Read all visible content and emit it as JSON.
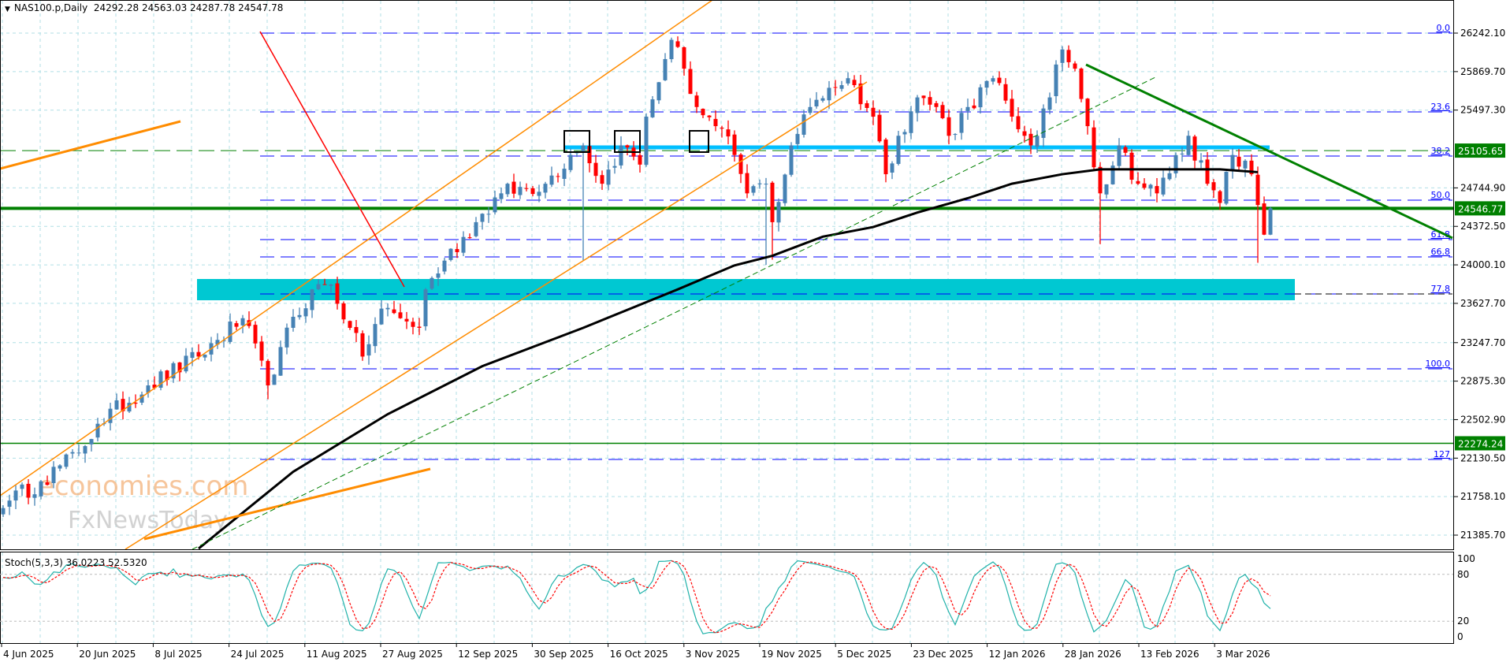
{
  "header": {
    "symbol": "NAS100.p,Daily",
    "ohlc": "24292.28 24563.03 24287.78 24547.78"
  },
  "colors": {
    "bull": "#4682b4",
    "bear": "#ff0000",
    "fib": "#0000ff",
    "support_green": "#008000",
    "zone": "#00c8d2",
    "cyan_line": "#00bfff",
    "channel": "#ff8c00",
    "ma": "#000000",
    "stoch_k": "#20b2aa",
    "stoch_d": "#ff0000"
  },
  "price_axis": {
    "ticks": [
      "26242.10",
      "25869.70",
      "25497.30",
      "24744.90",
      "24372.50",
      "24000.10",
      "23627.70",
      "23247.70",
      "22875.30",
      "22502.90",
      "22130.50",
      "21758.10",
      "21385.70"
    ],
    "range": [
      21385.7,
      26242.1
    ],
    "marked_levels": [
      {
        "label": "25105.65",
        "price": 25105.65,
        "style": "dashed"
      },
      {
        "label": "24546.77",
        "price": 24546.77,
        "style": "thick"
      },
      {
        "label": "22274.24",
        "price": 22274.24,
        "style": "solid"
      }
    ]
  },
  "fibonacci": [
    {
      "label": "0.0",
      "price": 26242
    },
    {
      "label": "23.6",
      "price": 25480
    },
    {
      "label": "38.2",
      "price": 25053
    },
    {
      "label": "50.0",
      "price": 24626
    },
    {
      "label": "61.8",
      "price": 24245
    },
    {
      "label": "66.8",
      "price": 24077
    },
    {
      "label": "77.8",
      "price": 23719
    },
    {
      "label": "100.0",
      "price": 22994
    },
    {
      "label": "127",
      "price": 22118
    }
  ],
  "time_axis": [
    "4 Jun 2025",
    "20 Jun 2025",
    "8 Jul 2025",
    "24 Jul 2025",
    "11 Aug 2025",
    "27 Aug 2025",
    "12 Sep 2025",
    "30 Sep 2025",
    "16 Oct 2025",
    "3 Nov 2025",
    "19 Nov 2025",
    "5 Dec 2025",
    "23 Dec 2025",
    "12 Jan 2026",
    "28 Jan 2026",
    "13 Feb 2026",
    "3 Mar 2026"
  ],
  "stoch": {
    "label": "Stoch(5,3,3) 36.0223 52.5320",
    "levels": [
      "100",
      "80",
      "20",
      "0"
    ]
  },
  "watermark": {
    "brand1": "economies.com",
    "brand2": "FxNewsToday"
  },
  "chart_data": {
    "type": "candlestick",
    "symbol": "NAS100.p",
    "timeframe": "Daily",
    "last": {
      "open": 24292.28,
      "high": 24563.03,
      "low": 24287.78,
      "close": 24547.78
    },
    "close_anchors": [
      [
        1,
        21720
      ],
      [
        6,
        21906
      ],
      [
        12,
        22184
      ],
      [
        15,
        22463
      ],
      [
        23,
        22834
      ],
      [
        31,
        23113
      ],
      [
        38,
        23484
      ],
      [
        42,
        22834
      ],
      [
        44,
        23205
      ],
      [
        49,
        23763
      ],
      [
        52,
        23810
      ],
      [
        55,
        23391
      ],
      [
        57,
        23113
      ],
      [
        60,
        23577
      ],
      [
        63,
        23484
      ],
      [
        66,
        23391
      ],
      [
        67,
        23763
      ],
      [
        70,
        24041
      ],
      [
        75,
        24413
      ],
      [
        79,
        24692
      ],
      [
        86,
        24785
      ],
      [
        90,
        25063
      ],
      [
        92,
        25156
      ],
      [
        95,
        24785
      ],
      [
        98,
        25156
      ],
      [
        101,
        24970
      ],
      [
        102,
        25434
      ],
      [
        105,
        25991
      ],
      [
        106,
        26177
      ],
      [
        108,
        25898
      ],
      [
        110,
        25527
      ],
      [
        113,
        25342
      ],
      [
        116,
        25063
      ],
      [
        118,
        24692
      ],
      [
        121,
        24785
      ],
      [
        122,
        24413
      ],
      [
        125,
        25156
      ],
      [
        128,
        25527
      ],
      [
        131,
        25713
      ],
      [
        134,
        25806
      ],
      [
        138,
        25434
      ],
      [
        140,
        24877
      ],
      [
        142,
        25249
      ],
      [
        145,
        25620
      ],
      [
        148,
        25527
      ],
      [
        150,
        25249
      ],
      [
        153,
        25527
      ],
      [
        157,
        25806
      ],
      [
        160,
        25434
      ],
      [
        162,
        25249
      ],
      [
        163,
        25156
      ],
      [
        166,
        25620
      ],
      [
        168,
        26084
      ],
      [
        170,
        25898
      ],
      [
        172,
        25342
      ],
      [
        174,
        24692
      ],
      [
        177,
        25156
      ],
      [
        180,
        24785
      ],
      [
        183,
        24692
      ],
      [
        188,
        25249
      ],
      [
        191,
        24785
      ],
      [
        193,
        24599
      ],
      [
        195,
        25063
      ],
      [
        198,
        24877
      ],
      [
        200,
        24292
      ],
      [
        201,
        24548
      ]
    ],
    "long_wicks": [
      [
        92,
        24041
      ],
      [
        121,
        24000
      ],
      [
        122,
        24050
      ],
      [
        174,
        24200
      ],
      [
        199,
        24020
      ],
      [
        42,
        22700
      ]
    ],
    "ma_anchors": [
      [
        31,
        21256
      ],
      [
        46,
        21999
      ],
      [
        61,
        22556
      ],
      [
        76,
        23020
      ],
      [
        92,
        23391
      ],
      [
        107,
        23763
      ],
      [
        116,
        23995
      ],
      [
        122,
        24088
      ],
      [
        130,
        24273
      ],
      [
        138,
        24366
      ],
      [
        145,
        24506
      ],
      [
        153,
        24645
      ],
      [
        160,
        24785
      ],
      [
        168,
        24877
      ],
      [
        174,
        24924
      ],
      [
        183,
        24924
      ],
      [
        193,
        24924
      ],
      [
        199,
        24897
      ]
    ],
    "stoch_last": {
      "k": 36.0223,
      "d": 52.532
    }
  }
}
